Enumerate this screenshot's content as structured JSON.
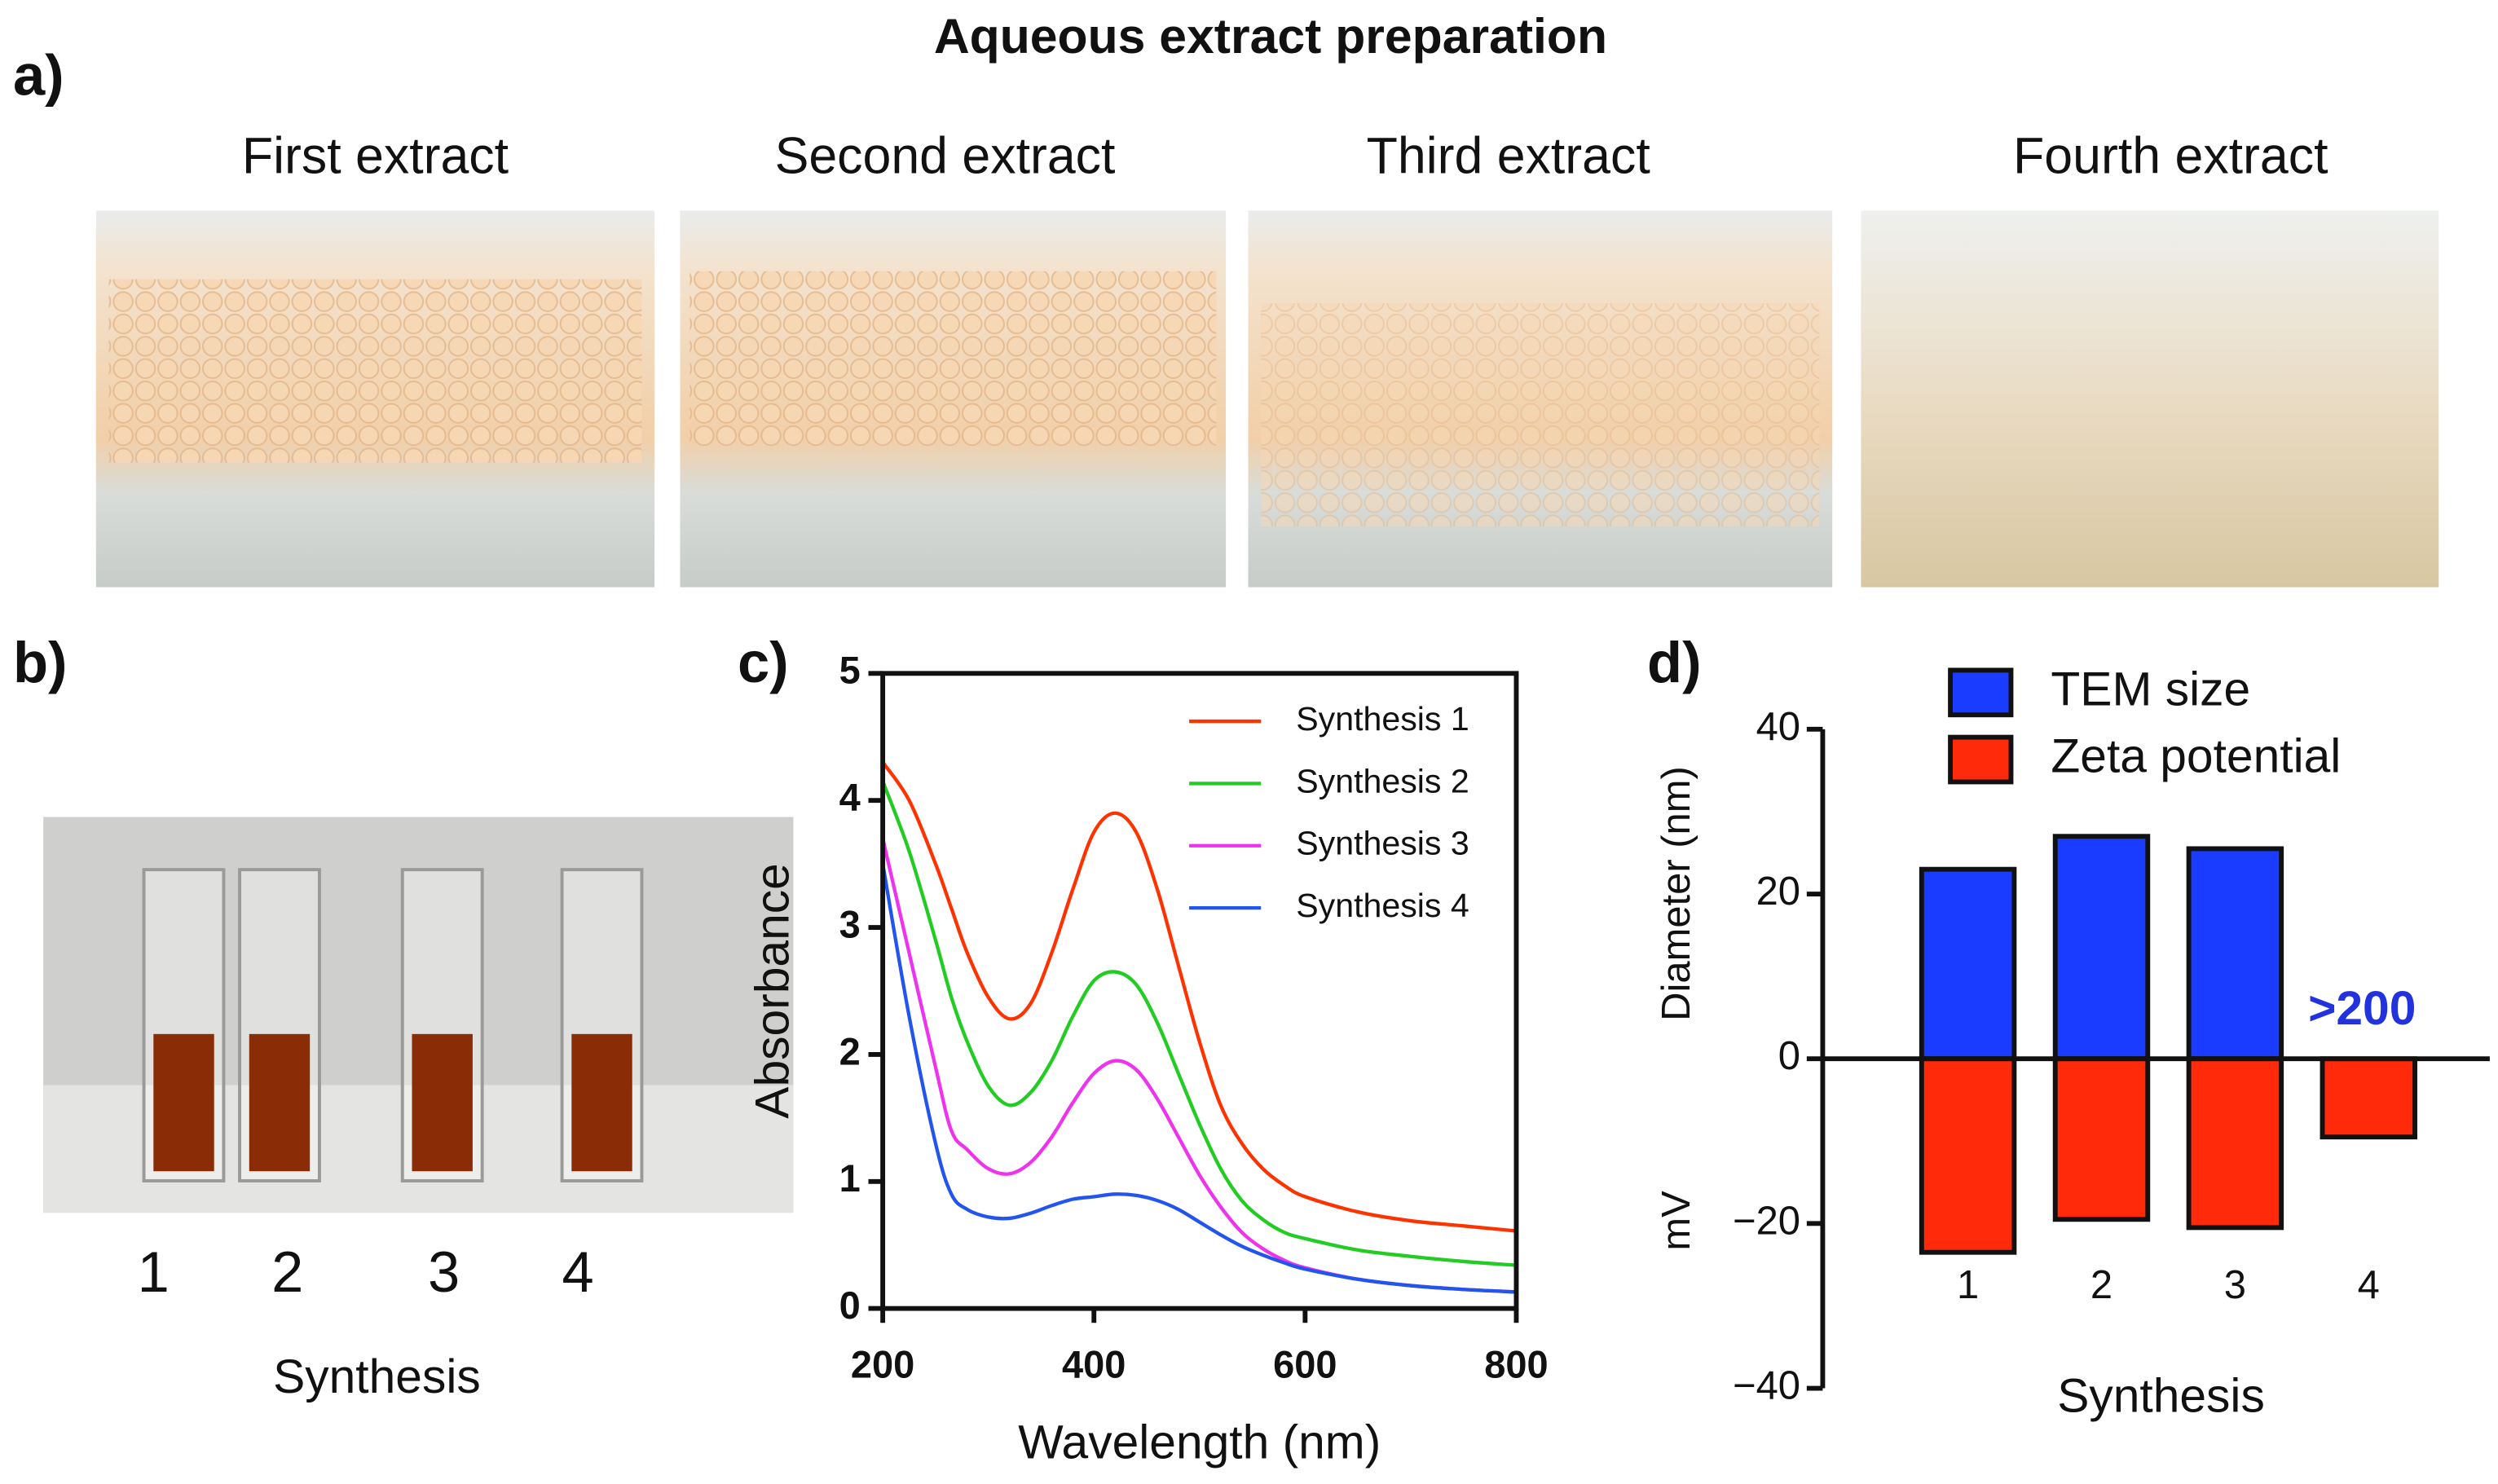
{
  "panel_labels": [
    "a)",
    "b)",
    "c)",
    "d)"
  ],
  "panel_a": {
    "title": "Aqueous extract preparation",
    "captions": [
      "First extract",
      "Second extract",
      "Third extract",
      "Fourth extract"
    ]
  },
  "panel_b": {
    "labels": [
      "1",
      "2",
      "3",
      "4"
    ],
    "xlabel": "Synthesis"
  },
  "chart_data": [
    {
      "type": "line",
      "xlabel": "Wavelength (nm)",
      "ylabel": "Absorbance",
      "x": [
        200,
        225,
        250,
        265,
        280,
        300,
        320,
        340,
        360,
        380,
        400,
        420,
        440,
        460,
        480,
        500,
        520,
        540,
        560,
        580,
        600,
        650,
        700,
        750,
        800
      ],
      "series": [
        {
          "name": "Synthesis 1",
          "color": "#ff3300",
          "values": [
            4.3,
            4.0,
            3.5,
            3.15,
            2.8,
            2.45,
            2.28,
            2.4,
            2.8,
            3.3,
            3.75,
            3.9,
            3.75,
            3.3,
            2.7,
            2.1,
            1.6,
            1.3,
            1.1,
            0.97,
            0.88,
            0.76,
            0.69,
            0.65,
            0.61
          ]
        },
        {
          "name": "Synthesis 2",
          "color": "#22cc22",
          "values": [
            4.15,
            3.6,
            2.9,
            2.45,
            2.1,
            1.75,
            1.6,
            1.7,
            1.95,
            2.3,
            2.58,
            2.65,
            2.55,
            2.25,
            1.85,
            1.45,
            1.1,
            0.85,
            0.7,
            0.6,
            0.55,
            0.46,
            0.41,
            0.37,
            0.34
          ]
        },
        {
          "name": "Synthesis 3",
          "color": "#ee33ee",
          "values": [
            3.7,
            2.8,
            1.9,
            1.4,
            1.25,
            1.1,
            1.06,
            1.15,
            1.35,
            1.62,
            1.85,
            1.95,
            1.88,
            1.65,
            1.35,
            1.05,
            0.8,
            0.6,
            0.47,
            0.38,
            0.32,
            0.23,
            0.18,
            0.15,
            0.13
          ]
        },
        {
          "name": "Synthesis 4",
          "color": "#2255ee",
          "values": [
            3.5,
            2.3,
            1.3,
            0.9,
            0.78,
            0.72,
            0.71,
            0.75,
            0.81,
            0.86,
            0.88,
            0.9,
            0.89,
            0.85,
            0.78,
            0.68,
            0.58,
            0.49,
            0.42,
            0.36,
            0.31,
            0.23,
            0.18,
            0.15,
            0.13
          ]
        }
      ],
      "xlim": [
        200,
        800
      ],
      "ylim": [
        0,
        5
      ],
      "xticks": [
        200,
        400,
        600,
        800
      ],
      "yticks": [
        0,
        1,
        2,
        3,
        4,
        5
      ]
    },
    {
      "type": "bar",
      "xlabel": "Synthesis",
      "ylabel": "Diameter (nm)",
      "ylabel2": "mV",
      "categories": [
        "1",
        "2",
        "3",
        "4"
      ],
      "series": [
        {
          "name": "TEM size",
          "color": "#1a3cff",
          "values": [
            23,
            27,
            25.5,
            null
          ]
        },
        {
          "name": "Zeta potential",
          "color": "#ff2a0a",
          "values": [
            -23.5,
            -19.5,
            -20.5,
            -9.5
          ]
        }
      ],
      "annotation": ">200",
      "ylim": [
        -40,
        40
      ],
      "yticks": [
        {
          "value": -40,
          "label": "−40"
        },
        {
          "value": -20,
          "label": "−20"
        },
        0,
        20,
        40
      ]
    }
  ]
}
